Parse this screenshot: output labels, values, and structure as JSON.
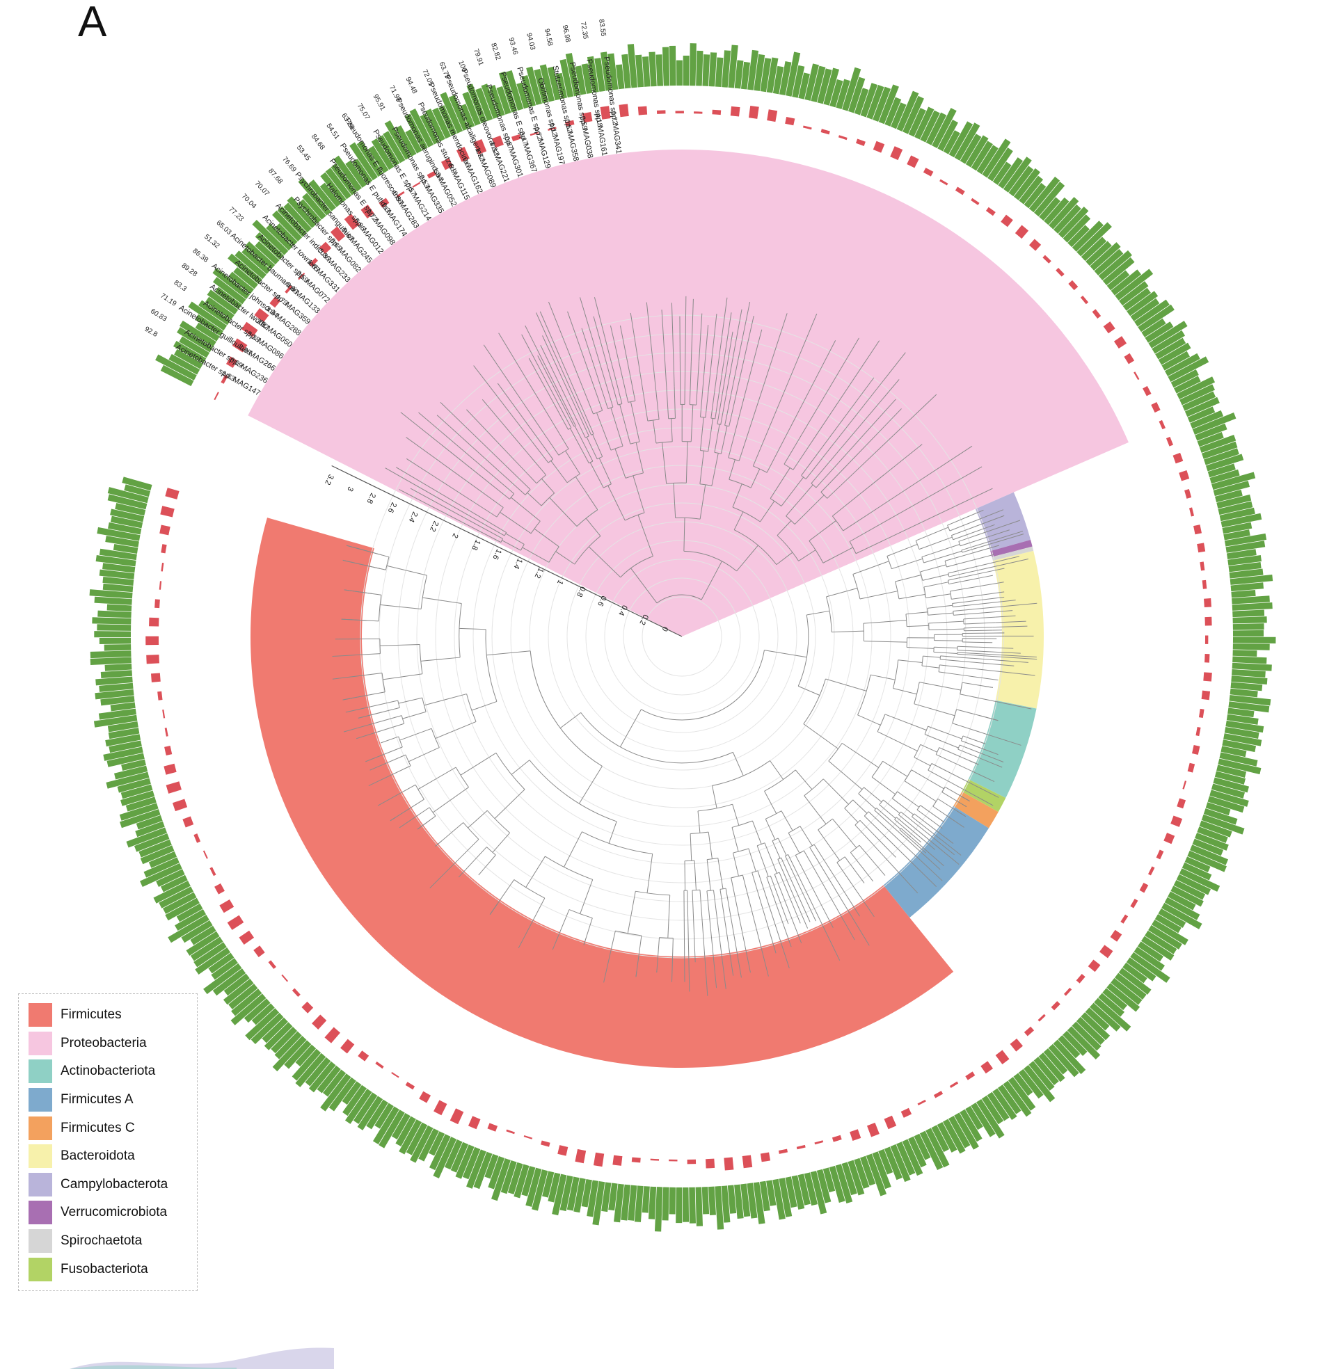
{
  "panel_label": "A",
  "axis": {
    "tick_labels": [
      "0",
      "0.2",
      "0.4",
      "0.6",
      "0.8",
      "1",
      "1.2",
      "1.4",
      "1.6",
      "1.8",
      "2",
      "2.2",
      "2.4",
      "2.6",
      "2.8",
      "3",
      "3.2"
    ]
  },
  "legend": {
    "items": [
      {
        "label": "Firmicutes",
        "color": "#f07a70"
      },
      {
        "label": "Proteobacteria",
        "color": "#f6c6e0"
      },
      {
        "label": "Actinobacteriota",
        "color": "#8fd0c5"
      },
      {
        "label": "Firmicutes A",
        "color": "#7eaacd"
      },
      {
        "label": "Firmicutes C",
        "color": "#f3a15e"
      },
      {
        "label": "Bacteroidota",
        "color": "#f7f1ab"
      },
      {
        "label": "Campylobacterota",
        "color": "#b9b4da"
      },
      {
        "label": "Verrucomicrobiota",
        "color": "#a86fb2"
      },
      {
        "label": "Spirochaetota",
        "color": "#d6d6d6"
      },
      {
        "label": "Fusobacteriota",
        "color": "#b2d365"
      }
    ]
  },
  "colors": {
    "completeness_bar": "#62a244",
    "contamination_bar": "#dc5058",
    "branch": "#8a8a8a"
  },
  "clades": [
    {
      "phylum": "Proteobacteria",
      "taxa": [
        {
          "name": "Acinetobacter spp. MAG147",
          "contamination": "1.83",
          "completeness": "92.8"
        },
        {
          "name": "Acinetobacter spp. MAG236",
          "contamination": "8.09",
          "completeness": "60.83"
        },
        {
          "name": "Acinetobacter guillouiae MAG266",
          "contamination": "2.38",
          "completeness": "71.19"
        },
        {
          "name": "Acinetobacter spp. MAG086",
          "contamination": "3.38",
          "completeness": "83.3"
        },
        {
          "name": "Acinetobacter lwoffii MAG050",
          "contamination": "3.82",
          "completeness": "89.28"
        },
        {
          "name": "Acinetobacter johnsonii MAG288",
          "contamination": "3.34",
          "completeness": "86.38"
        },
        {
          "name": "Acinetobacter spp. MAG359",
          "contamination": "4.79",
          "completeness": "51.32"
        },
        {
          "name": "Acinetobacter baumannii MAG133",
          "contamination": "0.86",
          "completeness": "65.03"
        },
        {
          "name": "Acinetobacter spp. MAG072",
          "contamination": "2.59",
          "completeness": "77.23"
        },
        {
          "name": "Acinetobacter towneri MAG331",
          "contamination": "1.65",
          "completeness": "70.04"
        },
        {
          "name": "Acinetobacter indicus MAG233",
          "contamination": "5.36",
          "completeness": "70.07"
        },
        {
          "name": "Psychrobacter spp. MAG082",
          "contamination": "3.65",
          "completeness": "87.68"
        },
        {
          "name": "Psychrobacter sanguinis MAG245",
          "contamination": "9.48",
          "completeness": "76.69"
        },
        {
          "name": "Halomonas spp. MAG012",
          "contamination": "5.96",
          "completeness": "53.45"
        },
        {
          "name": "Pseudomonas E spp. MAG098",
          "contamination": "1.72",
          "completeness": "84.68"
        },
        {
          "name": "Pseudomonas E putida MAG174",
          "contamination": "0.3",
          "completeness": "54.51"
        },
        {
          "name": "Pseudomonas E fluorescens MAG283",
          "contamination": "0.86",
          "completeness": "63.28"
        },
        {
          "name": "Pseudomonas E spp. MAG214",
          "contamination": "0.57",
          "completeness": "75.07"
        },
        {
          "name": "Pseudomonas spp. MAG335",
          "contamination": "2.53",
          "completeness": "95.91"
        },
        {
          "name": "Pseudomonas aeruginosa MAG052",
          "contamination": "1.94",
          "completeness": "71.98"
        },
        {
          "name": "Pseudomonas stutzeri MAG115",
          "contamination": "6.9",
          "completeness": "94.48"
        },
        {
          "name": "Pseudomonas mendocina MAG162",
          "contamination": "0.6",
          "completeness": "72.05"
        },
        {
          "name": "Pseudomonas alcaligenes MAG089",
          "contamination": "1.72",
          "completeness": "63.79"
        },
        {
          "name": "Pseudomonas oleovorans MAG221",
          "contamination": "1.32",
          "completeness": "100"
        },
        {
          "name": "Pseudomonas spp. MAG301",
          "contamination": "0.87",
          "completeness": "79.91"
        },
        {
          "name": "Pseudomonas E spp. MAG367",
          "contamination": "3.47",
          "completeness": "82.82"
        },
        {
          "name": "Pseudomonas E spp. MAG129",
          "contamination": "1.72",
          "completeness": "93.46"
        },
        {
          "name": "Oblitimonas spp. MAG197",
          "contamination": "1.12",
          "completeness": "94.03"
        },
        {
          "name": "Stutzerimonas spp. MAG358",
          "contamination": "0.52",
          "completeness": "94.58"
        },
        {
          "name": "Pseudomonas spp. MAG038",
          "contamination": "2.59",
          "completeness": "96.98"
        },
        {
          "name": "Pseudomonas spp. MAG161",
          "contamination": "4.18",
          "completeness": "72.35"
        },
        {
          "name": "Pseudomonas spp. MAG341",
          "contamination": "1.72",
          "completeness": "83.55"
        }
      ]
    }
  ]
}
